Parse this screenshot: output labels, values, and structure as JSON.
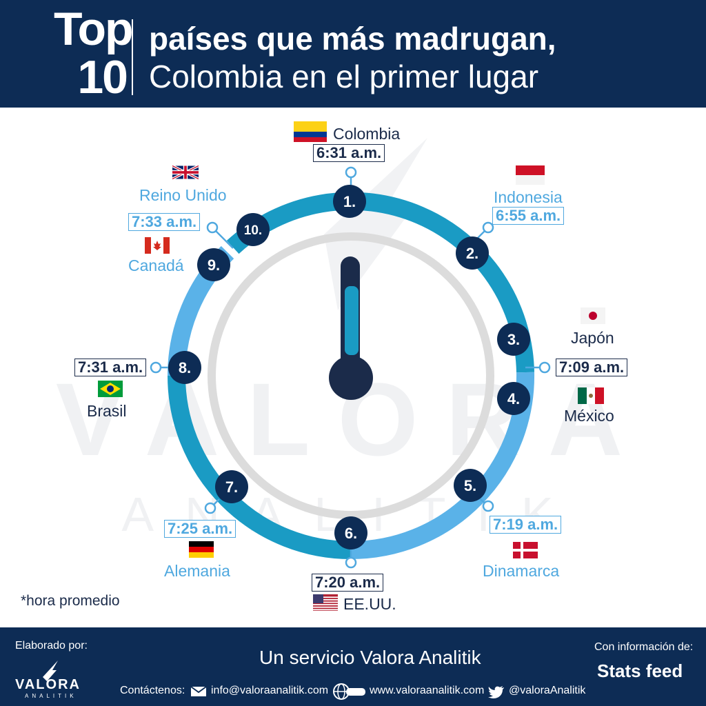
{
  "header": {
    "top_word": "Top",
    "top_number": "10",
    "title_line1": "países que más madrugan,",
    "title_line2": "Colombia en el primer lugar"
  },
  "ranking": [
    {
      "rank": "1.",
      "country": "Colombia",
      "time": "6:31 a.m."
    },
    {
      "rank": "2.",
      "country": "Indonesia",
      "time": "6:55 a.m."
    },
    {
      "rank": "3.",
      "country": "Japón",
      "time": "7:09 a.m."
    },
    {
      "rank": "4.",
      "country": "México",
      "time": "7:09 a.m."
    },
    {
      "rank": "5.",
      "country": "Dinamarca",
      "time": "7:19 a.m."
    },
    {
      "rank": "6.",
      "country": "EE.UU.",
      "time": "7:20 a.m."
    },
    {
      "rank": "7.",
      "country": "Alemania",
      "time": "7:25 a.m."
    },
    {
      "rank": "8.",
      "country": "Brasil",
      "time": "7:31 a.m."
    },
    {
      "rank": "9.",
      "country": "Canadá",
      "time": "7:33 a.m."
    },
    {
      "rank": "10.",
      "country": "Reino Unido",
      "time": "7:33 a.m."
    }
  ],
  "note": "*hora promedio",
  "watermark": {
    "main": "VALORA",
    "sub": "ANALITIK"
  },
  "footer": {
    "elaborated_by": "Elaborado por:",
    "logo_main": "VALORA",
    "logo_sub": "ANALITIK",
    "service": "Un servicio Valora Analitik",
    "contact_label": "Contáctenos:",
    "email": "info@valoraanalitik.com",
    "website": "www.valoraanalitik.com",
    "twitter": "@valoraAnalitik",
    "info_label": "Con información de:",
    "source": "Stats feed"
  },
  "colors": {
    "navy": "#0d2c55",
    "dark": "#1b2b4a",
    "light_blue": "#4fa8df",
    "teal": "#1a9bc4",
    "sky": "#5ab2e8"
  }
}
